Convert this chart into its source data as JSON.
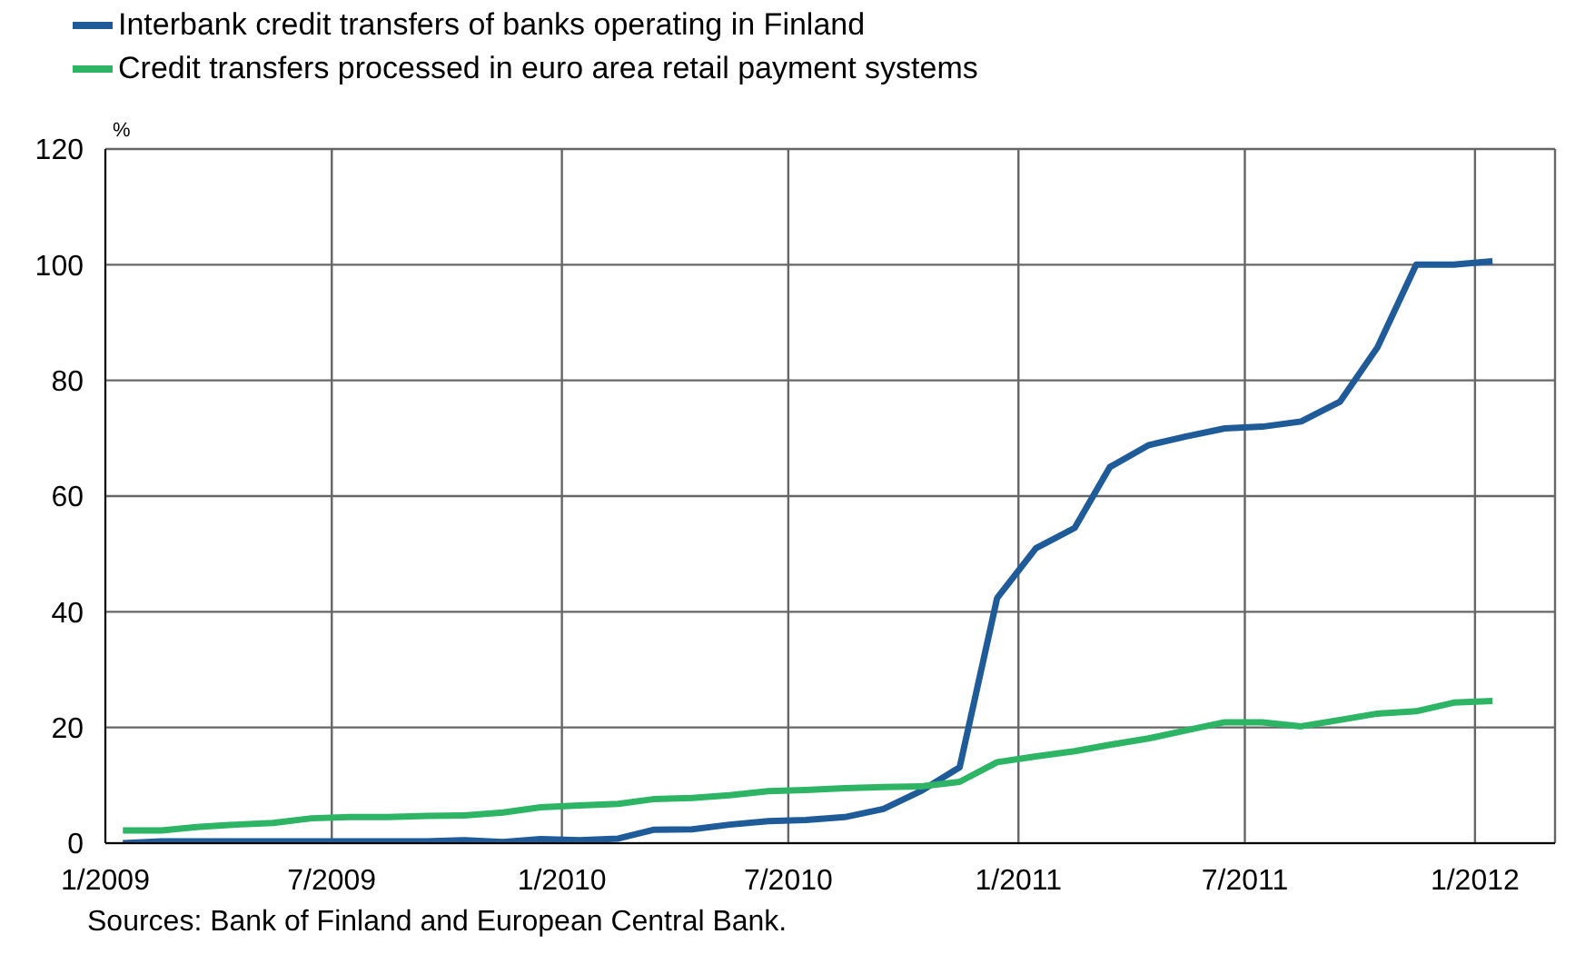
{
  "chart_data": {
    "type": "line",
    "ylabel": "%",
    "legend": "top left",
    "grid": true,
    "x": [
      "2009-01-15",
      "2009-02-15",
      "2009-03-15",
      "2009-04-15",
      "2009-05-15",
      "2009-06-15",
      "2009-07-15",
      "2009-08-15",
      "2009-09-15",
      "2009-10-15",
      "2009-11-15",
      "2009-12-15",
      "2010-01-15",
      "2010-02-15",
      "2010-03-15",
      "2010-04-15",
      "2010-05-15",
      "2010-06-15",
      "2010-07-15",
      "2010-08-15",
      "2010-09-15",
      "2010-10-15",
      "2010-11-15",
      "2010-12-15",
      "2011-01-15",
      "2011-02-15",
      "2011-03-15",
      "2011-04-15",
      "2011-05-15",
      "2011-06-15",
      "2011-07-15",
      "2011-08-15",
      "2011-09-15",
      "2011-10-15",
      "2011-11-15",
      "2011-12-15",
      "2012-01-15"
    ],
    "xlim": [
      "2009-01-01",
      "2012-03-05"
    ],
    "xticks": [
      {
        "value": "2009-01-01",
        "label": "1/2009"
      },
      {
        "value": "2009-07-01",
        "label": "7/2009"
      },
      {
        "value": "2010-01-01",
        "label": "1/2010"
      },
      {
        "value": "2010-07-01",
        "label": "7/2010"
      },
      {
        "value": "2011-01-01",
        "label": "1/2011"
      },
      {
        "value": "2011-07-01",
        "label": "7/2011"
      },
      {
        "value": "2012-01-01",
        "label": "1/2012"
      }
    ],
    "ylim": [
      0,
      120
    ],
    "yticks": [
      0,
      20,
      40,
      60,
      80,
      100,
      120
    ],
    "series": [
      {
        "name": "Interbank credit transfers of banks operating in Finland",
        "color": "#1f5b99",
        "values": [
          0,
          0.3,
          0.3,
          0.3,
          0.3,
          0.3,
          0.3,
          0.3,
          0.3,
          0.5,
          0.2,
          0.7,
          0.5,
          0.8,
          2.3,
          2.4,
          3.2,
          3.8,
          4.0,
          4.5,
          5.9,
          9,
          13.1,
          42.4,
          51,
          54.5,
          65,
          68.8,
          70.3,
          71.7,
          72,
          72.9,
          76.3,
          85.7,
          100,
          100,
          100.6
        ]
      },
      {
        "name": "Credit transfers processed in euro area retail payment systems",
        "color": "#2db464",
        "values": [
          2.2,
          2.2,
          2.8,
          3.2,
          3.5,
          4.3,
          4.5,
          4.5,
          4.7,
          4.8,
          5.3,
          6.2,
          6.5,
          6.8,
          7.6,
          7.8,
          8.3,
          9.0,
          9.2,
          9.5,
          9.7,
          9.8,
          10.6,
          14,
          15,
          15.9,
          17,
          18.1,
          19.5,
          20.9,
          20.9,
          20.2,
          21.3,
          22.4,
          22.8,
          24.3,
          24.6
        ]
      }
    ],
    "annotations": [
      "Sources: Bank of Finland and European Central Bank."
    ]
  }
}
